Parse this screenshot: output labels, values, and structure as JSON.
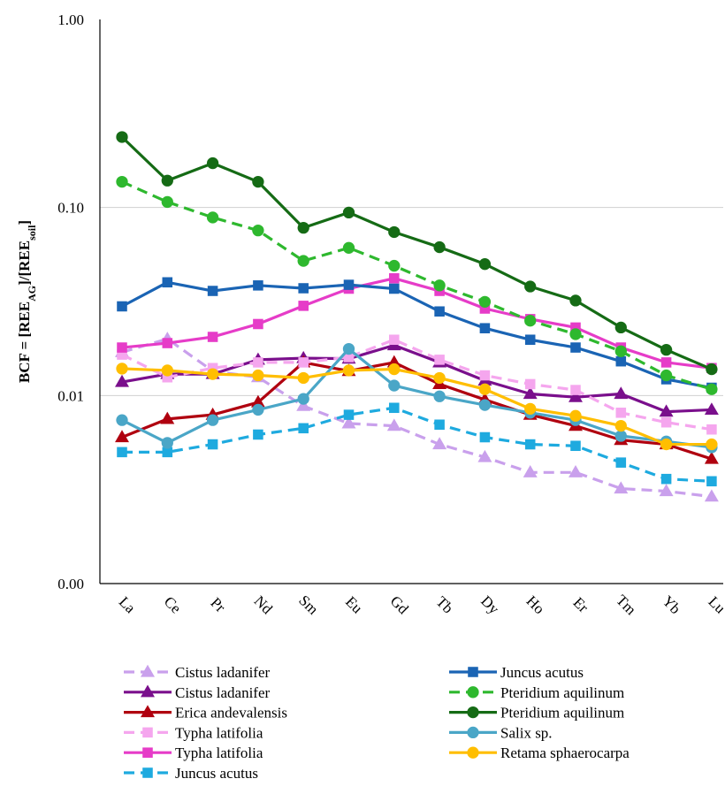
{
  "chart_data": {
    "type": "line",
    "yscale": "log",
    "ylim": [
      0.001,
      1.0
    ],
    "grid": true,
    "legend_position": "bottom",
    "ylabel": {
      "prefix": "BCF = [REE",
      "sub1": "AG",
      "middle": "]/[REE",
      "sub2": "soil",
      "suffix": "]"
    },
    "yticks": [
      {
        "value": 1.0,
        "label": "1.00"
      },
      {
        "value": 0.1,
        "label": "0.10"
      },
      {
        "value": 0.01,
        "label": "0.01"
      },
      {
        "value": 0.001,
        "label": "0.00"
      }
    ],
    "categories": [
      "La",
      "Ce",
      "Pr",
      "Nd",
      "Sm",
      "Eu",
      "Gd",
      "Tb",
      "Dy",
      "Ho",
      "Er",
      "Tm",
      "Yb",
      "Lu"
    ],
    "series": [
      {
        "name": "Cistus ladanifer",
        "color": "#c9a0ec",
        "marker": "triangle",
        "dashed": true,
        "values": [
          0.017,
          0.02,
          0.0135,
          0.0125,
          0.0088,
          0.0071,
          0.0069,
          0.0055,
          0.0047,
          0.0039,
          0.0039,
          0.0032,
          0.0031,
          0.0029
        ]
      },
      {
        "name": "Cistus ladanifer",
        "color": "#7a0f8c",
        "marker": "triangle",
        "dashed": false,
        "values": [
          0.0118,
          0.013,
          0.013,
          0.0155,
          0.0158,
          0.0157,
          0.0185,
          0.015,
          0.012,
          0.0102,
          0.0098,
          0.0102,
          0.0082,
          0.0084
        ]
      },
      {
        "name": "Erica andevalensis",
        "color": "#b0000f",
        "marker": "triangle",
        "dashed": false,
        "values": [
          0.006,
          0.0075,
          0.0079,
          0.0092,
          0.015,
          0.0135,
          0.015,
          0.0115,
          0.0095,
          0.0079,
          0.0069,
          0.0058,
          0.0055,
          0.0046
        ]
      },
      {
        "name": "Typha latifolia",
        "color": "#f5a6ee",
        "marker": "square",
        "dashed": true,
        "values": [
          0.0165,
          0.0125,
          0.014,
          0.015,
          0.015,
          0.016,
          0.0198,
          0.0155,
          0.0128,
          0.0115,
          0.0107,
          0.0081,
          0.0072,
          0.0066
        ]
      },
      {
        "name": "Typha latifolia",
        "color": "#e63cc8",
        "marker": "square",
        "dashed": false,
        "values": [
          0.018,
          0.019,
          0.0205,
          0.024,
          0.03,
          0.037,
          0.042,
          0.036,
          0.029,
          0.0255,
          0.023,
          0.018,
          0.015,
          0.014
        ]
      },
      {
        "name": "Juncus acutus",
        "color": "#1eaadf",
        "marker": "square",
        "dashed": true,
        "values": [
          0.005,
          0.005,
          0.0055,
          0.0062,
          0.0067,
          0.0079,
          0.0086,
          0.007,
          0.006,
          0.0055,
          0.0054,
          0.0044,
          0.0036,
          0.0035
        ]
      },
      {
        "name": "Juncus acutus",
        "color": "#1a64b4",
        "marker": "square",
        "dashed": false,
        "values": [
          0.0298,
          0.04,
          0.036,
          0.0385,
          0.0372,
          0.0388,
          0.037,
          0.028,
          0.0228,
          0.0198,
          0.018,
          0.0152,
          0.0122,
          0.011
        ]
      },
      {
        "name": "Pteridium aquilinum",
        "color": "#2eb82e",
        "marker": "circle",
        "dashed": true,
        "values": [
          0.137,
          0.107,
          0.0885,
          0.0755,
          0.052,
          0.061,
          0.049,
          0.0385,
          0.0315,
          0.025,
          0.0212,
          0.0172,
          0.0128,
          0.0108
        ]
      },
      {
        "name": "Pteridium aquilinum",
        "color": "#156b15",
        "marker": "circle",
        "dashed": false,
        "values": [
          0.237,
          0.139,
          0.172,
          0.137,
          0.078,
          0.094,
          0.074,
          0.0615,
          0.05,
          0.038,
          0.032,
          0.023,
          0.0175,
          0.0138
        ]
      },
      {
        "name": "Salix sp.",
        "color": "#4aa6c7",
        "marker": "circle",
        "dashed": false,
        "values": [
          0.0074,
          0.0056,
          0.0074,
          0.0084,
          0.0096,
          0.0177,
          0.0113,
          0.0099,
          0.0089,
          0.0081,
          0.0074,
          0.0061,
          0.0057,
          0.0053
        ]
      },
      {
        "name": "Retama sphaerocarpa",
        "color": "#ffbe00",
        "marker": "circle",
        "dashed": false,
        "values": [
          0.0139,
          0.0136,
          0.013,
          0.0128,
          0.0124,
          0.0136,
          0.0138,
          0.0124,
          0.0108,
          0.0085,
          0.0078,
          0.0069,
          0.0055,
          0.0055
        ]
      }
    ],
    "legend_layout": {
      "left_column": [
        0,
        1,
        2,
        3,
        4,
        5
      ],
      "right_column": [
        6,
        7,
        8,
        9,
        10
      ]
    }
  }
}
